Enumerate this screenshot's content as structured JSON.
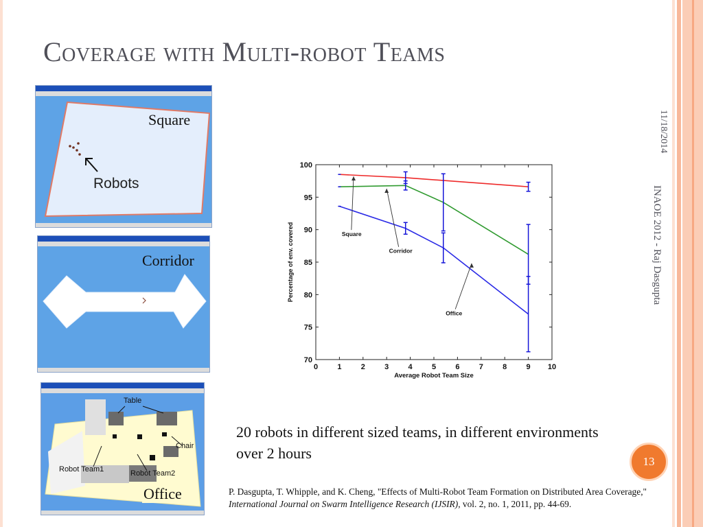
{
  "slide": {
    "title": "Coverage with Multi-robot Teams",
    "side_date": "11/18/2014",
    "side_credit": "INAOE 2012 - Raj Dasgupta",
    "page_number": "13",
    "caption": "20 robots in different sized teams, in different environments over 2 hours",
    "citation_authors": "P. Dasgupta, T. Whipple, and K. Cheng, \"Effects of Multi-Robot Team Formation on Distributed Area Coverage,\" ",
    "citation_journal": "International Journal on Swarm Intelligence Research (IJSIR)",
    "citation_rest": ", vol. 2, no. 1, 2011, pp. 44-69.",
    "colors": {
      "title": "#4f4f58",
      "accent": "#f07a2e",
      "stripe_light": "#fde0d2",
      "stripe_mid": "#f8b89a"
    }
  },
  "environments": [
    {
      "label": "Square",
      "inner_text": "Robots"
    },
    {
      "label": "Corridor"
    },
    {
      "label": "Office",
      "inner_labels": [
        "Table",
        "Chair",
        "Robot Team1",
        "Robot Team2"
      ]
    }
  ],
  "chart_data": {
    "type": "line",
    "xlabel": "Average Robot Team Size",
    "ylabel": "Percentage of env. covered",
    "xlim": [
      0,
      10
    ],
    "ylim": [
      70,
      100
    ],
    "xticks": [
      0,
      1,
      2,
      3,
      4,
      5,
      6,
      7,
      8,
      9,
      10
    ],
    "yticks": [
      70,
      75,
      80,
      85,
      90,
      95,
      100
    ],
    "series": [
      {
        "name": "Square",
        "color": "#ee2a2a",
        "x": [
          1,
          3.8,
          9
        ],
        "y": [
          98.5,
          98.0,
          96.6
        ],
        "err": [
          0,
          0.9,
          0.7
        ]
      },
      {
        "name": "Corridor",
        "color": "#2f9a2f",
        "x": [
          1,
          3.8,
          5.4,
          9
        ],
        "y": [
          96.6,
          96.8,
          94.2,
          86.2
        ],
        "err": [
          0,
          0.7,
          4.4,
          4.6
        ]
      },
      {
        "name": "Office",
        "color": "#2a2ae6",
        "x": [
          1,
          3.8,
          5.4,
          9
        ],
        "y": [
          93.6,
          90.2,
          87.2,
          77.0
        ],
        "err": [
          0,
          0.9,
          2.3,
          5.8
        ]
      }
    ],
    "annotations": [
      {
        "text": "Square",
        "series": "Square"
      },
      {
        "text": "Corridor",
        "series": "Corridor"
      },
      {
        "text": "Office",
        "series": "Office"
      }
    ],
    "grid": false,
    "legend": "inline annotations"
  }
}
